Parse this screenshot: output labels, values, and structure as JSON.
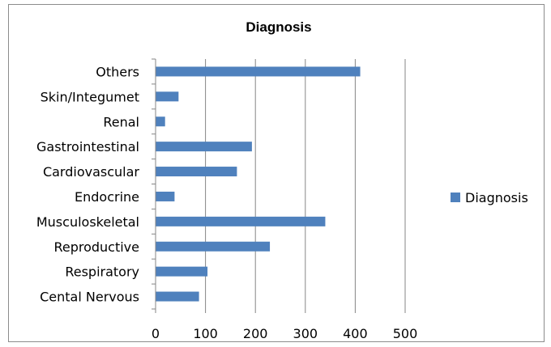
{
  "chart_data": {
    "type": "bar",
    "orientation": "horizontal",
    "title": "Diagnosis",
    "categories": [
      "Cental Nervous",
      "Respiratory",
      "Reproductive",
      "Musculoskeletal",
      "Endocrine",
      "Cardiovascular",
      "Gastrointestinal",
      "Renal",
      "Skin/Integumet",
      "Others"
    ],
    "series": [
      {
        "name": "Diagnosis",
        "values": [
          87,
          104,
          229,
          340,
          38,
          163,
          193,
          19,
          46,
          410
        ]
      }
    ],
    "xlim": [
      0,
      500
    ],
    "xticks": [
      "0",
      "100",
      "200",
      "300",
      "400",
      "500"
    ],
    "grid": true,
    "legend": "right",
    "colors": {
      "bar": "#4F81BD",
      "grid": "#868686",
      "axis": "#868686"
    }
  }
}
